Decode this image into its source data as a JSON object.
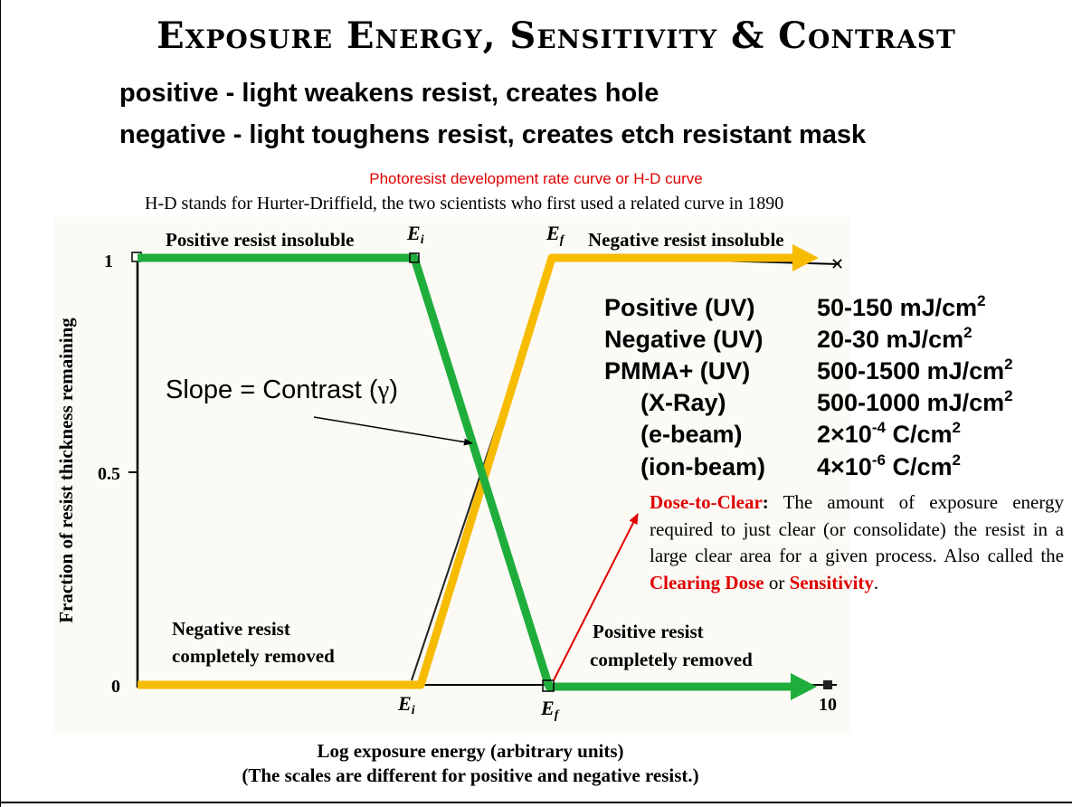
{
  "title": "Exposure Energy, Sensitivity & Contrast",
  "bullets": [
    "positive - light weakens resist, creates hole",
    "negative - light toughens resist, creates etch resistant mask"
  ],
  "curve_title": "Photoresist development rate curve or H-D curve",
  "hd_note": "H-D stands for Hurter-Driffield, the two scientists who first used a related curve in 1890",
  "chart": {
    "y_axis_label": "Fraction of resist thickness remaining",
    "x_axis_label_line1": "Log exposure energy (arbitrary units)",
    "x_axis_label_line2": "(The scales are different for positive and negative resist.)",
    "y_ticks": [
      "1",
      "0.5",
      "0"
    ],
    "x_end_tick": "10",
    "ei_label": "E",
    "ei_sub": "i",
    "ef_label": "E",
    "ef_sub": "f",
    "positive_insoluble": "Positive resist insoluble",
    "negative_insoluble": "Negative resist insoluble",
    "negative_removed_line1": "Negative resist",
    "negative_removed_line2": "completely removed",
    "positive_removed_line1": "Positive resist",
    "positive_removed_line2": "completely removed",
    "slope_prefix": "Slope = Contrast (",
    "slope_gamma": "γ",
    "slope_suffix": ")",
    "positive_color": "#1fae3c",
    "negative_color": "#f7bb00",
    "arrow_color": "#e00000"
  },
  "chart_data": {
    "type": "line",
    "x_scale": "log",
    "series": [
      {
        "name": "Positive resist",
        "points": [
          [
            "start",
            1
          ],
          [
            "Ei",
            1
          ],
          [
            "Ef",
            0
          ],
          [
            "10",
            0
          ]
        ]
      },
      {
        "name": "Negative resist",
        "points": [
          [
            "start",
            0
          ],
          [
            "Ei",
            0
          ],
          [
            "Ef",
            1
          ],
          [
            "10",
            1
          ]
        ]
      }
    ],
    "ylim": [
      0,
      1
    ]
  },
  "sensitivities": [
    {
      "name": "Positive (UV)",
      "value_pre": "50-150 mJ/cm",
      "value_sup": "2",
      "value_post": ""
    },
    {
      "name": "Negative (UV)",
      "value_pre": "20-30 mJ/cm",
      "value_sup": "2",
      "value_post": ""
    },
    {
      "name": "PMMA+ (UV)",
      "value_pre": "500-1500 mJ/cm",
      "value_sup": "2",
      "value_post": ""
    },
    {
      "name": "(X-Ray)",
      "value_pre": "500-1000 mJ/cm",
      "value_sup": "2",
      "value_post": ""
    },
    {
      "name": "(e-beam)",
      "value_pre": "2×10",
      "value_sup": "-4",
      "value_post": " C/cm",
      "value_sup2": "2"
    },
    {
      "name": "(ion-beam)",
      "value_pre": "4×10",
      "value_sup": "-6",
      "value_post": " C/cm",
      "value_sup2": "2"
    }
  ],
  "dose_to_clear": {
    "term": "Dose-to-Clear",
    "colon": ":",
    "text1": " The amount of exposure energy required to just clear (or consolidate) the resist in a large clear area for a given process. Also called the ",
    "term2": "Clearing Dose",
    "text2": " or ",
    "term3": "Sensitivity",
    "text3": "."
  }
}
